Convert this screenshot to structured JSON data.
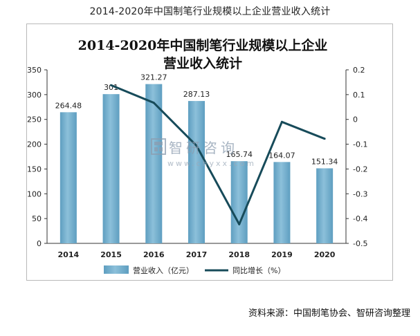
{
  "page_title": "2014-2020年中国制笔行业规模以上企业营业收入统计",
  "source": "资料来源：中国制笔协会、智研咨询整理",
  "watermark": {
    "name": "智研咨询",
    "url": "www.chyxx.com"
  },
  "colors": {
    "bar": "#5e9ec0",
    "bar_light": "#8cc0da",
    "line": "#174b5a"
  },
  "chart_data": {
    "type": "bar",
    "title_line1": "2014-2020年中国制笔行业规模以上企业",
    "title_line2": "营业收入统计",
    "categories": [
      "2014",
      "2015",
      "2016",
      "2017",
      "2018",
      "2019",
      "2020"
    ],
    "series": [
      {
        "name": "营业收入（亿元）",
        "type": "bar",
        "axis": "left",
        "values": [
          264.48,
          301,
          321.27,
          287.13,
          165.74,
          164.07,
          151.34
        ],
        "labels": [
          "264.48",
          "301",
          "321.27",
          "287.13",
          "165.74",
          "164.07",
          "151.34"
        ]
      },
      {
        "name": "同比增长（%）",
        "type": "line",
        "axis": "right",
        "values": [
          null,
          0.138,
          0.067,
          -0.106,
          -0.423,
          -0.01,
          -0.078
        ]
      }
    ],
    "y_left": {
      "min": 0,
      "max": 350,
      "ticks": [
        "0",
        "50",
        "100",
        "150",
        "200",
        "250",
        "300",
        "350"
      ]
    },
    "y_right": {
      "min": -0.5,
      "max": 0.2,
      "ticks": [
        "-0.5",
        "-0.4",
        "-0.3",
        "-0.2",
        "-0.1",
        "0",
        "0.1",
        "0.2"
      ]
    },
    "legend": {
      "position": "bottom"
    }
  }
}
